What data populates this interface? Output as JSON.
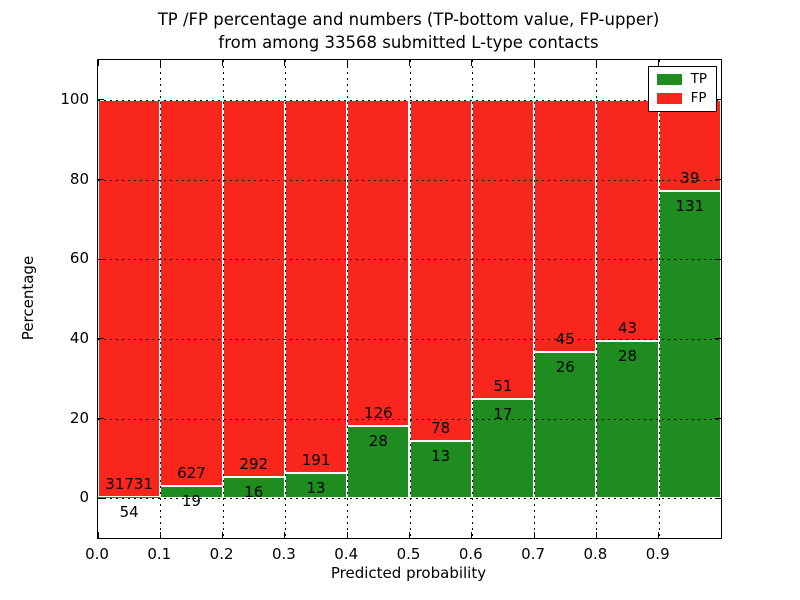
{
  "title": {
    "line1": "TP /FP percentage and numbers (TP-bottom value, FP-upper)",
    "line2": "from among 33568 submitted L-type contacts"
  },
  "chart_data": {
    "type": "bar",
    "stacked": true,
    "percent_normalized": true,
    "title": "TP /FP percentage and numbers (TP-bottom value, FP-upper)\nfrom among 33568 submitted L-type contacts",
    "total_submitted": 33568,
    "xlabel": "Predicted probability",
    "ylabel": "Percentage",
    "xlim": [
      0.0,
      1.0
    ],
    "ylim": [
      -10,
      110
    ],
    "x_ticks": [
      "0.0",
      "0.1",
      "0.2",
      "0.3",
      "0.4",
      "0.5",
      "0.6",
      "0.7",
      "0.8",
      "0.9"
    ],
    "y_ticks": [
      0,
      20,
      40,
      60,
      80,
      100
    ],
    "grid": "dotted",
    "colors": {
      "tp": "#1e8c1e",
      "fp": "#f8261d"
    },
    "legend": {
      "position": "upper right",
      "entries": [
        {
          "label": "TP",
          "color": "#1e8c1e"
        },
        {
          "label": "FP",
          "color": "#f8261d"
        }
      ]
    },
    "bins": [
      {
        "range": [
          0.0,
          0.1
        ],
        "tp": 54,
        "fp": 31731,
        "tp_pct": 0.17,
        "fp_pct": 99.83
      },
      {
        "range": [
          0.1,
          0.2
        ],
        "tp": 19,
        "fp": 627,
        "tp_pct": 2.94,
        "fp_pct": 97.06
      },
      {
        "range": [
          0.2,
          0.3
        ],
        "tp": 16,
        "fp": 292,
        "tp_pct": 5.19,
        "fp_pct": 94.81
      },
      {
        "range": [
          0.3,
          0.4
        ],
        "tp": 13,
        "fp": 191,
        "tp_pct": 6.37,
        "fp_pct": 93.63
      },
      {
        "range": [
          0.4,
          0.5
        ],
        "tp": 28,
        "fp": 126,
        "tp_pct": 18.18,
        "fp_pct": 81.82
      },
      {
        "range": [
          0.5,
          0.6
        ],
        "tp": 13,
        "fp": 78,
        "tp_pct": 14.29,
        "fp_pct": 85.71
      },
      {
        "range": [
          0.6,
          0.7
        ],
        "tp": 17,
        "fp": 51,
        "tp_pct": 25.0,
        "fp_pct": 75.0
      },
      {
        "range": [
          0.7,
          0.8
        ],
        "tp": 26,
        "fp": 45,
        "tp_pct": 36.62,
        "fp_pct": 63.38
      },
      {
        "range": [
          0.8,
          0.9
        ],
        "tp": 28,
        "fp": 43,
        "tp_pct": 39.44,
        "fp_pct": 60.56
      },
      {
        "range": [
          0.9,
          1.0
        ],
        "tp": 131,
        "fp": 39,
        "tp_pct": 77.06,
        "fp_pct": 22.94
      }
    ]
  }
}
